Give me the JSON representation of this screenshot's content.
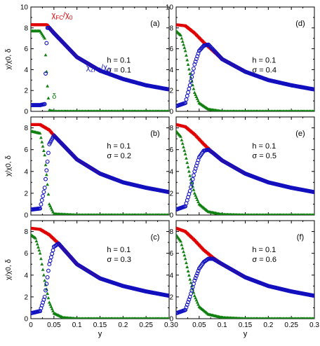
{
  "figure": {
    "ylabel": "χ/χ0, δ",
    "xlabel": "y",
    "series_labels": {
      "fc": {
        "main": "χ",
        "sub": "FC",
        "slash": "/χ",
        "sub2": "0"
      },
      "zfc": {
        "main": "χ",
        "sub": "ZFC",
        "slash": "/χ",
        "sub2": "0"
      },
      "delta": "δ"
    },
    "colors": {
      "fc": "#e00000",
      "zfc": "#1010c0",
      "delta": "#108010",
      "axis": "#000000"
    }
  },
  "chart_data": [
    {
      "panel": "(a)",
      "type": "scatter",
      "h_label": "h = 0.1",
      "sigma_label": "σ = 0.1",
      "xlim": [
        0,
        0.3
      ],
      "ylim": [
        0,
        10
      ],
      "xticks": [
        "0",
        "0.05",
        "0.1",
        "0.15",
        "0.2",
        "0.25",
        "0.3"
      ],
      "yticks": [
        "0",
        "2",
        "4",
        "6",
        "8",
        "10"
      ],
      "params": {
        "fc_plateau": 8.3,
        "zfc_low": 0.6,
        "zfc_tail_end": 2.1,
        "delta_start": 7.7
      },
      "series": [
        {
          "name": "χFC/χ0",
          "x": [
            0,
            0.02,
            0.035,
            0.05,
            0.1,
            0.15,
            0.2,
            0.25,
            0.3
          ],
          "y": [
            8.3,
            8.3,
            8.3,
            7.5,
            5.2,
            3.9,
            3.1,
            2.5,
            2.1
          ]
        },
        {
          "name": "χZFC/χ0",
          "x": [
            0,
            0.02,
            0.03,
            0.035,
            0.04,
            0.05,
            0.1,
            0.15,
            0.2,
            0.25,
            0.3
          ],
          "y": [
            0.6,
            0.6,
            0.7,
            8.0,
            8.0,
            7.5,
            5.2,
            3.9,
            3.1,
            2.5,
            2.1
          ]
        },
        {
          "name": "δ",
          "x": [
            0,
            0.02,
            0.03,
            0.035,
            0.04,
            0.05,
            0.1,
            0.3
          ],
          "y": [
            7.7,
            7.7,
            7.0,
            3.0,
            0.1,
            0,
            0,
            0
          ]
        }
      ]
    },
    {
      "panel": "(b)",
      "type": "scatter",
      "h_label": "h = 0.1",
      "sigma_label": "σ = 0.2",
      "xlim": [
        0,
        0.3
      ],
      "ylim": [
        0,
        9
      ],
      "xticks": [
        "0",
        "0.05",
        "0.1",
        "0.15",
        "0.2",
        "0.25",
        "0.3"
      ],
      "yticks": [
        "0",
        "2",
        "4",
        "6",
        "8"
      ],
      "series": [
        {
          "name": "χFC/χ0",
          "x": [
            0,
            0.02,
            0.04,
            0.05,
            0.1,
            0.15,
            0.2,
            0.25,
            0.3
          ],
          "y": [
            8.3,
            8.3,
            7.8,
            7.3,
            5.1,
            3.8,
            3.0,
            2.5,
            2.1
          ]
        },
        {
          "name": "χZFC/χ0",
          "x": [
            0,
            0.02,
            0.03,
            0.04,
            0.05,
            0.1,
            0.15,
            0.2,
            0.25,
            0.3
          ],
          "y": [
            0.5,
            0.6,
            2.5,
            6.5,
            7.3,
            5.1,
            3.8,
            3.0,
            2.5,
            2.1
          ]
        },
        {
          "name": "δ",
          "x": [
            0,
            0.02,
            0.03,
            0.04,
            0.05,
            0.1,
            0.3
          ],
          "y": [
            7.7,
            7.5,
            5.5,
            1.0,
            0.1,
            0,
            0
          ]
        }
      ]
    },
    {
      "panel": "(c)",
      "type": "scatter",
      "h_label": "h = 0.1",
      "sigma_label": "σ = 0.3",
      "xlim": [
        0,
        0.3
      ],
      "ylim": [
        0,
        9
      ],
      "xticks": [
        "0",
        "0.05",
        "0.1",
        "0.15",
        "0.2",
        "0.25",
        "0.3"
      ],
      "yticks": [
        "0",
        "2",
        "4",
        "6",
        "8"
      ],
      "series": [
        {
          "name": "χFC/χ0",
          "x": [
            0,
            0.02,
            0.04,
            0.06,
            0.1,
            0.15,
            0.2,
            0.25,
            0.3
          ],
          "y": [
            8.3,
            8.2,
            7.7,
            6.9,
            5.0,
            3.7,
            3.0,
            2.5,
            2.1
          ]
        },
        {
          "name": "χZFC/χ0",
          "x": [
            0,
            0.02,
            0.03,
            0.04,
            0.05,
            0.06,
            0.1,
            0.15,
            0.2,
            0.25,
            0.3
          ],
          "y": [
            0.5,
            0.7,
            2.0,
            5.0,
            6.6,
            6.9,
            5.0,
            3.7,
            3.0,
            2.5,
            2.1
          ]
        },
        {
          "name": "δ",
          "x": [
            0,
            0.01,
            0.02,
            0.03,
            0.04,
            0.05,
            0.07,
            0.1,
            0.3
          ],
          "y": [
            7.7,
            7.4,
            6.0,
            3.5,
            1.5,
            0.5,
            0.1,
            0,
            0
          ]
        }
      ]
    },
    {
      "panel": "(d)",
      "type": "scatter",
      "h_label": "h = 0.1",
      "sigma_label": "σ = 0.4",
      "xlim": [
        0,
        0.3
      ],
      "ylim": [
        0,
        10
      ],
      "xticks": [
        "0",
        "0.05",
        "0.1",
        "0.15",
        "0.2",
        "0.25",
        "0.3"
      ],
      "yticks": [
        "0",
        "2",
        "4",
        "6",
        "8",
        "10"
      ],
      "series": [
        {
          "name": "χFC/χ0",
          "x": [
            0,
            0.02,
            0.04,
            0.06,
            0.08,
            0.1,
            0.15,
            0.2,
            0.25,
            0.3
          ],
          "y": [
            8.3,
            8.2,
            7.5,
            6.6,
            5.8,
            5.0,
            3.8,
            3.0,
            2.5,
            2.1
          ]
        },
        {
          "name": "χZFC/χ0",
          "x": [
            0,
            0.02,
            0.03,
            0.04,
            0.05,
            0.06,
            0.07,
            0.1,
            0.15,
            0.2,
            0.25,
            0.3
          ],
          "y": [
            0.5,
            0.8,
            2.5,
            4.5,
            5.8,
            6.3,
            6.4,
            5.0,
            3.8,
            3.0,
            2.5,
            2.1
          ]
        },
        {
          "name": "δ",
          "x": [
            0,
            0.01,
            0.02,
            0.03,
            0.04,
            0.05,
            0.07,
            0.1,
            0.3
          ],
          "y": [
            7.7,
            7.3,
            5.8,
            3.6,
            1.8,
            0.8,
            0.2,
            0,
            0
          ]
        }
      ]
    },
    {
      "panel": "(e)",
      "type": "scatter",
      "h_label": "h = 0.1",
      "sigma_label": "σ = 0.5",
      "xlim": [
        0,
        0.3
      ],
      "ylim": [
        0,
        9
      ],
      "xticks": [
        "0",
        "0.05",
        "0.1",
        "0.15",
        "0.2",
        "0.25",
        "0.3"
      ],
      "yticks": [
        "0",
        "2",
        "4",
        "6",
        "8"
      ],
      "series": [
        {
          "name": "χFC/χ0",
          "x": [
            0,
            0.02,
            0.04,
            0.06,
            0.08,
            0.1,
            0.15,
            0.2,
            0.25,
            0.3
          ],
          "y": [
            8.3,
            8.1,
            7.4,
            6.5,
            5.7,
            5.0,
            3.8,
            3.0,
            2.5,
            2.1
          ]
        },
        {
          "name": "χZFC/χ0",
          "x": [
            0,
            0.02,
            0.03,
            0.04,
            0.05,
            0.06,
            0.07,
            0.08,
            0.1,
            0.15,
            0.2,
            0.25,
            0.3
          ],
          "y": [
            0.5,
            0.8,
            2.2,
            4.0,
            5.3,
            5.9,
            6.0,
            5.7,
            5.0,
            3.8,
            3.0,
            2.5,
            2.1
          ]
        },
        {
          "name": "δ",
          "x": [
            0,
            0.01,
            0.02,
            0.03,
            0.04,
            0.05,
            0.07,
            0.1,
            0.15,
            0.3
          ],
          "y": [
            7.7,
            7.2,
            5.6,
            3.6,
            2.0,
            1.0,
            0.3,
            0.05,
            0,
            0
          ]
        }
      ]
    },
    {
      "panel": "(f)",
      "type": "scatter",
      "h_label": "h = 0.1",
      "sigma_label": "σ = 0.6",
      "xlim": [
        0,
        0.3
      ],
      "ylim": [
        0,
        9
      ],
      "xticks": [
        "0",
        "0.05",
        "0.1",
        "0.15",
        "0.2",
        "0.25",
        "0.3"
      ],
      "yticks": [
        "0",
        "2",
        "4",
        "6",
        "8"
      ],
      "series": [
        {
          "name": "χFC/χ0",
          "x": [
            0,
            0.02,
            0.04,
            0.06,
            0.08,
            0.1,
            0.15,
            0.2,
            0.25,
            0.3
          ],
          "y": [
            8.3,
            8.0,
            7.2,
            6.3,
            5.6,
            5.0,
            3.8,
            3.0,
            2.5,
            2.1
          ]
        },
        {
          "name": "χZFC/χ0",
          "x": [
            0,
            0.02,
            0.03,
            0.04,
            0.05,
            0.06,
            0.07,
            0.08,
            0.1,
            0.15,
            0.2,
            0.25,
            0.3
          ],
          "y": [
            0.5,
            0.8,
            2.0,
            3.5,
            4.6,
            5.2,
            5.5,
            5.5,
            5.0,
            3.8,
            3.0,
            2.5,
            2.1
          ]
        },
        {
          "name": "δ",
          "x": [
            0,
            0.01,
            0.02,
            0.03,
            0.04,
            0.05,
            0.07,
            0.1,
            0.15,
            0.3
          ],
          "y": [
            7.7,
            7.1,
            5.5,
            3.6,
            2.1,
            1.1,
            0.4,
            0.1,
            0,
            0
          ]
        }
      ]
    }
  ]
}
